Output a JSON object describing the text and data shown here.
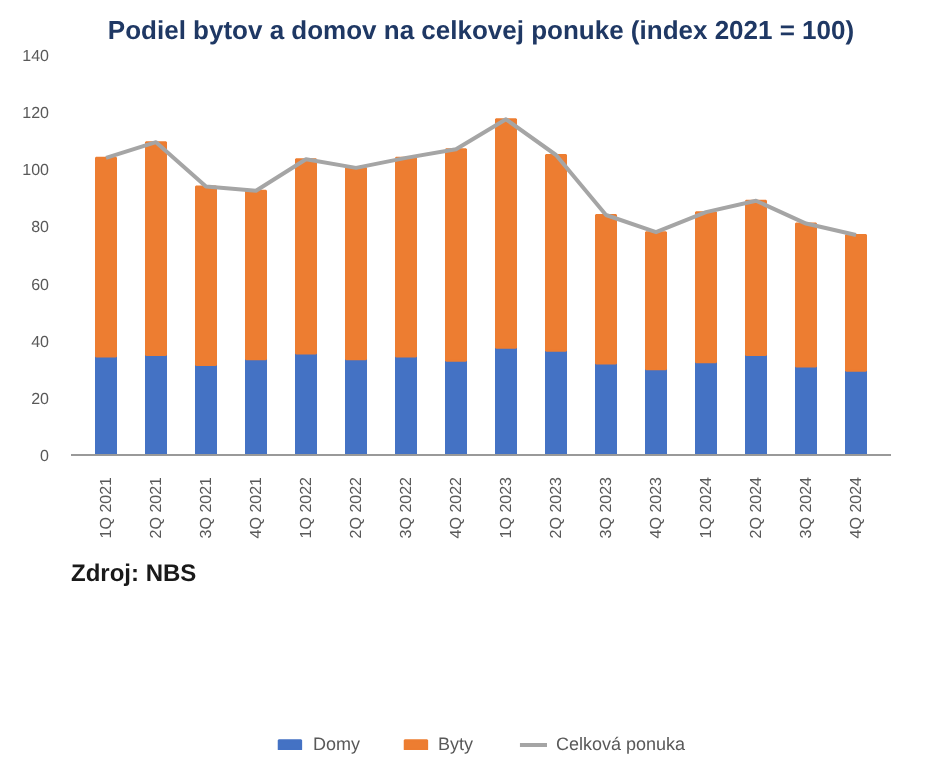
{
  "chart_data": {
    "type": "bar",
    "title": "Podiel bytov a domov na celkovej ponuke (index 2021 = 100)",
    "categories": [
      "1Q 2021",
      "2Q 2021",
      "3Q 2021",
      "4Q 2021",
      "1Q 2022",
      "2Q 2022",
      "3Q 2022",
      "4Q 2022",
      "1Q 2023",
      "2Q 2023",
      "3Q 2023",
      "4Q 2023",
      "1Q 2024",
      "2Q 2024",
      "3Q 2024",
      "4Q 2024"
    ],
    "stacked": true,
    "series": [
      {
        "name": "Domy",
        "color": "#4472c4",
        "values": [
          34.5,
          35,
          31.5,
          33.5,
          35.5,
          33.5,
          34.5,
          33,
          37.5,
          36.5,
          32,
          30,
          32.5,
          35,
          31,
          29.5
        ]
      },
      {
        "name": "Byty",
        "color": "#ed7d31",
        "values": [
          69.5,
          74.5,
          62.5,
          59,
          68,
          67,
          69.5,
          74,
          80,
          68.5,
          52,
          48,
          52.5,
          54,
          50,
          47.5
        ]
      },
      {
        "name": "Celková ponuka",
        "type": "line",
        "color": "#a5a5a5",
        "values": [
          104,
          109.5,
          94,
          92.5,
          103.5,
          100.5,
          104,
          107,
          117.5,
          105,
          84,
          78,
          85,
          89,
          81,
          77
        ]
      }
    ],
    "ylim": [
      0,
      140
    ],
    "yticks": [
      0,
      20,
      40,
      60,
      80,
      100,
      120,
      140
    ],
    "grid": false,
    "legend": "bottom",
    "marker": "none",
    "line_style": "solid",
    "annotations": [
      "Zdroj: NBS"
    ]
  }
}
